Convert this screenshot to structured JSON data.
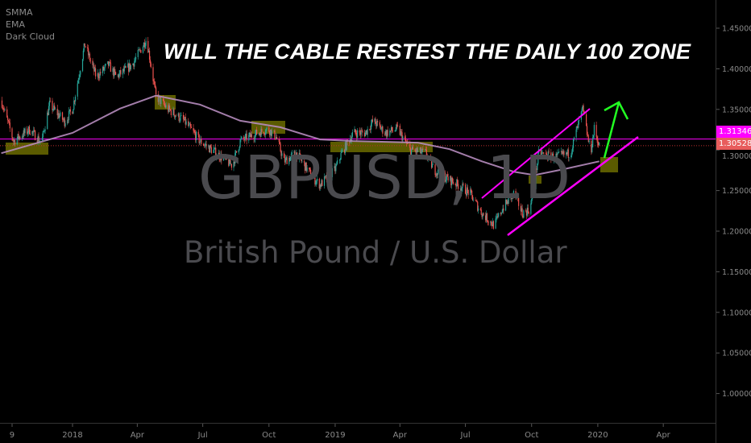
{
  "legend": [
    "SMMA",
    "EMA",
    "Dark Cloud"
  ],
  "title": "WILL THE CABLE RESTEST THE DAILY 100 ZONE",
  "watermark": {
    "symbol": "GBPUSD, 1D",
    "description": "British Pound / U.S. Dollar"
  },
  "price_labels": [
    {
      "value": "1.31346",
      "color": "#ff00ff"
    },
    {
      "value": "1.30528",
      "color": "#e85c5c"
    }
  ],
  "colors": {
    "up": "#26a69a",
    "down": "#ef5350",
    "ma": "#b58bbd",
    "zone": "#6b6b00",
    "channel": "#ff00ff",
    "arrow": "#22ff22",
    "background": "#000000",
    "axis_text": "#8a8a8a"
  },
  "chart_data": {
    "type": "candlestick",
    "symbol": "GBPUSD",
    "interval": "1D",
    "ylim": [
      0.97,
      1.48
    ],
    "y_ticks": [
      "1.45000",
      "1.40000",
      "1.35000",
      "1.30000",
      "1.25000",
      "1.20000",
      "1.15000",
      "1.10000",
      "1.05000",
      "1.00000"
    ],
    "x_ticks": [
      {
        "label": "9",
        "date": "2017-10-09"
      },
      {
        "label": "2018",
        "date": "2018-01-01"
      },
      {
        "label": "Apr",
        "date": "2018-04-01"
      },
      {
        "label": "Jul",
        "date": "2018-07-01"
      },
      {
        "label": "Oct",
        "date": "2018-10-01"
      },
      {
        "label": "2019",
        "date": "2019-01-01"
      },
      {
        "label": "Apr",
        "date": "2019-04-01"
      },
      {
        "label": "Jul",
        "date": "2019-07-01"
      },
      {
        "label": "Oct",
        "date": "2019-10-01"
      },
      {
        "label": "2020",
        "date": "2020-01-01"
      },
      {
        "label": "Apr",
        "date": "2020-04-01"
      }
    ],
    "close_path": [
      [
        "2017-09-24",
        1.361
      ],
      [
        "2017-10-11",
        1.311
      ],
      [
        "2017-11-02",
        1.325
      ],
      [
        "2017-11-19",
        1.31
      ],
      [
        "2017-11-30",
        1.356
      ],
      [
        "2017-12-21",
        1.335
      ],
      [
        "2018-01-01",
        1.35
      ],
      [
        "2018-01-18",
        1.43
      ],
      [
        "2018-02-03",
        1.39
      ],
      [
        "2018-02-20",
        1.405
      ],
      [
        "2018-03-03",
        1.39
      ],
      [
        "2018-03-25",
        1.405
      ],
      [
        "2018-04-14",
        1.437
      ],
      [
        "2018-04-27",
        1.366
      ],
      [
        "2018-05-14",
        1.35
      ],
      [
        "2018-06-05",
        1.336
      ],
      [
        "2018-06-27",
        1.311
      ],
      [
        "2018-07-20",
        1.296
      ],
      [
        "2018-08-11",
        1.281
      ],
      [
        "2018-08-22",
        1.311
      ],
      [
        "2018-09-13",
        1.32
      ],
      [
        "2018-09-30",
        1.326
      ],
      [
        "2018-10-11",
        1.316
      ],
      [
        "2018-10-22",
        1.286
      ],
      [
        "2018-11-08",
        1.296
      ],
      [
        "2018-11-30",
        1.267
      ],
      [
        "2018-12-11",
        1.257
      ],
      [
        "2019-01-01",
        1.276
      ],
      [
        "2019-01-10",
        1.296
      ],
      [
        "2019-01-26",
        1.321
      ],
      [
        "2019-02-12",
        1.321
      ],
      [
        "2019-02-23",
        1.336
      ],
      [
        "2019-03-12",
        1.321
      ],
      [
        "2019-03-29",
        1.326
      ],
      [
        "2019-04-15",
        1.3
      ],
      [
        "2019-05-07",
        1.296
      ],
      [
        "2019-05-18",
        1.276
      ],
      [
        "2019-06-04",
        1.266
      ],
      [
        "2019-06-21",
        1.257
      ],
      [
        "2019-07-07",
        1.247
      ],
      [
        "2019-07-24",
        1.222
      ],
      [
        "2019-08-10",
        1.207
      ],
      [
        "2019-08-21",
        1.227
      ],
      [
        "2019-09-07",
        1.247
      ],
      [
        "2019-09-18",
        1.222
      ],
      [
        "2019-09-29",
        1.227
      ],
      [
        "2019-10-05",
        1.261
      ],
      [
        "2019-10-11",
        1.296
      ],
      [
        "2019-11-02",
        1.291
      ],
      [
        "2019-11-24",
        1.296
      ],
      [
        "2019-11-30",
        1.316
      ],
      [
        "2019-12-11",
        1.35
      ],
      [
        "2019-12-22",
        1.296
      ],
      [
        "2019-12-27",
        1.326
      ],
      [
        "2020-01-03",
        1.305
      ]
    ],
    "moving_average": {
      "name": "SMMA",
      "points": [
        [
          "2017-09-24",
          1.296
        ],
        [
          "2018-01-01",
          1.321
        ],
        [
          "2018-03-08",
          1.351
        ],
        [
          "2018-04-27",
          1.367
        ],
        [
          "2018-06-27",
          1.356
        ],
        [
          "2018-08-22",
          1.336
        ],
        [
          "2018-10-17",
          1.328
        ],
        [
          "2018-12-11",
          1.313
        ],
        [
          "2019-01-26",
          1.311
        ],
        [
          "2019-04-26",
          1.309
        ],
        [
          "2019-06-09",
          1.301
        ],
        [
          "2019-07-24",
          1.286
        ],
        [
          "2019-09-07",
          1.273
        ],
        [
          "2019-10-05",
          1.269
        ],
        [
          "2019-11-13",
          1.276
        ],
        [
          "2020-01-03",
          1.286
        ]
      ]
    },
    "horizontal_lines": [
      1.31346,
      1.30528
    ]
  }
}
